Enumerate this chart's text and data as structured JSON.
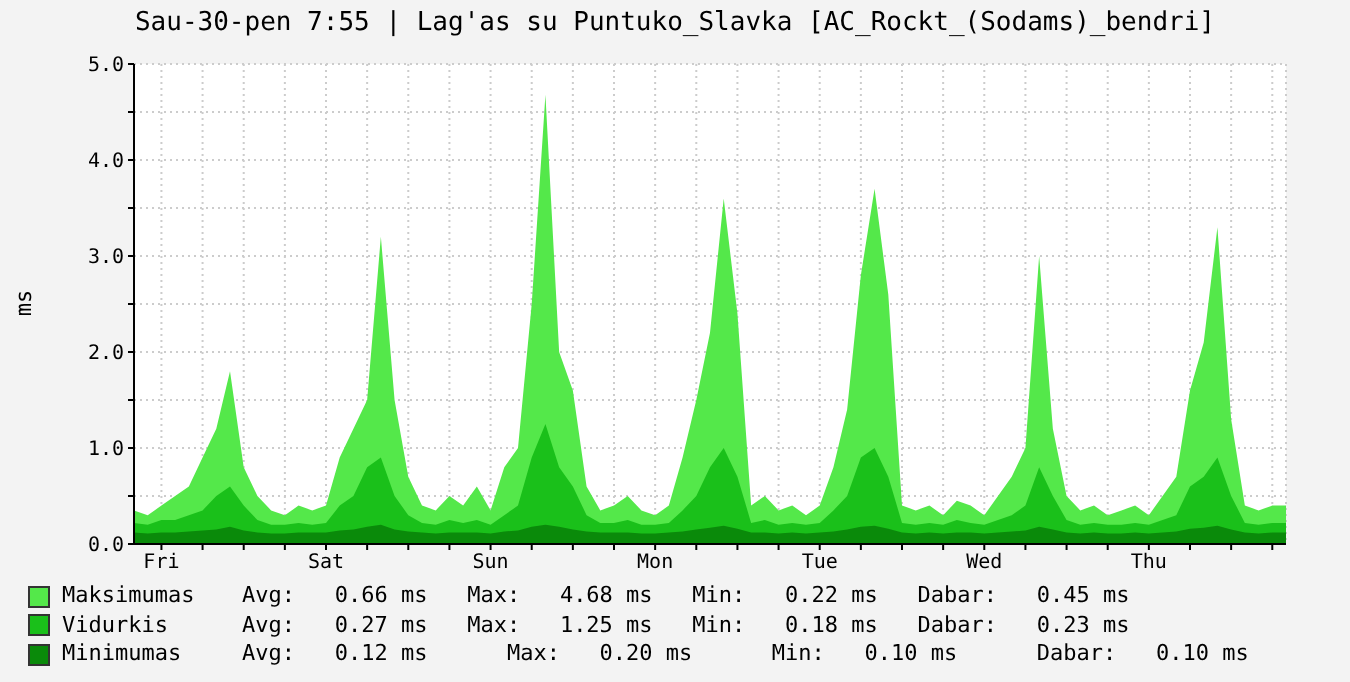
{
  "chart_data": {
    "type": "area",
    "title": "Sau-30-pen 7:55 | Lag'as su Puntuko_Slavka [AC_Rockt_(Sodams)_bendri]",
    "ylabel": "ms",
    "categories": [
      null,
      null,
      "Fri",
      null,
      null,
      null,
      null,
      null,
      null,
      null,
      null,
      null,
      null,
      null,
      "Sat",
      null,
      null,
      null,
      null,
      null,
      null,
      null,
      null,
      null,
      null,
      null,
      "Sun",
      null,
      null,
      null,
      null,
      null,
      null,
      null,
      null,
      null,
      null,
      null,
      "Mon",
      null,
      null,
      null,
      null,
      null,
      null,
      null,
      null,
      null,
      null,
      null,
      "Tue",
      null,
      null,
      null,
      null,
      null,
      null,
      null,
      null,
      null,
      null,
      null,
      "Wed",
      null,
      null,
      null,
      null,
      null,
      null,
      null,
      null,
      null,
      null,
      null,
      "Thu",
      null,
      null,
      null,
      null,
      null,
      null,
      null,
      null,
      null,
      null
    ],
    "series": [
      {
        "name": "Maksimumas",
        "color": "#54e84a",
        "values": [
          0.35,
          0.3,
          0.4,
          0.5,
          0.6,
          0.9,
          1.2,
          1.8,
          0.8,
          0.5,
          0.35,
          0.3,
          0.4,
          0.35,
          0.4,
          0.9,
          1.2,
          1.5,
          3.2,
          1.5,
          0.7,
          0.4,
          0.35,
          0.5,
          0.4,
          0.6,
          0.35,
          0.8,
          1.0,
          2.5,
          4.68,
          2.0,
          1.6,
          0.6,
          0.35,
          0.4,
          0.5,
          0.35,
          0.3,
          0.4,
          0.9,
          1.5,
          2.2,
          3.6,
          2.4,
          0.4,
          0.5,
          0.35,
          0.4,
          0.3,
          0.4,
          0.8,
          1.4,
          2.8,
          3.7,
          2.6,
          0.4,
          0.35,
          0.4,
          0.3,
          0.45,
          0.4,
          0.3,
          0.5,
          0.7,
          1.0,
          3.0,
          1.2,
          0.5,
          0.35,
          0.4,
          0.3,
          0.35,
          0.4,
          0.3,
          0.5,
          0.7,
          1.6,
          2.1,
          3.3,
          1.3,
          0.4,
          0.35,
          0.4,
          0.4
        ]
      },
      {
        "name": "Vidurkis",
        "color": "#1ac01a",
        "values": [
          0.22,
          0.2,
          0.25,
          0.25,
          0.3,
          0.35,
          0.5,
          0.6,
          0.4,
          0.25,
          0.2,
          0.2,
          0.22,
          0.2,
          0.22,
          0.4,
          0.5,
          0.8,
          0.9,
          0.5,
          0.3,
          0.22,
          0.2,
          0.25,
          0.22,
          0.25,
          0.2,
          0.3,
          0.4,
          0.9,
          1.25,
          0.8,
          0.6,
          0.3,
          0.22,
          0.22,
          0.25,
          0.2,
          0.2,
          0.22,
          0.35,
          0.5,
          0.8,
          1.0,
          0.7,
          0.22,
          0.25,
          0.2,
          0.22,
          0.2,
          0.22,
          0.35,
          0.5,
          0.9,
          1.0,
          0.7,
          0.22,
          0.2,
          0.22,
          0.2,
          0.25,
          0.22,
          0.2,
          0.25,
          0.3,
          0.4,
          0.8,
          0.5,
          0.25,
          0.2,
          0.22,
          0.2,
          0.2,
          0.22,
          0.2,
          0.25,
          0.3,
          0.6,
          0.7,
          0.9,
          0.5,
          0.22,
          0.2,
          0.22,
          0.22
        ]
      },
      {
        "name": "Minimumas",
        "color": "#0a8a0a",
        "values": [
          0.12,
          0.11,
          0.12,
          0.12,
          0.13,
          0.14,
          0.15,
          0.18,
          0.14,
          0.12,
          0.11,
          0.11,
          0.12,
          0.12,
          0.12,
          0.14,
          0.15,
          0.18,
          0.2,
          0.15,
          0.13,
          0.12,
          0.11,
          0.12,
          0.12,
          0.12,
          0.11,
          0.13,
          0.14,
          0.18,
          0.2,
          0.18,
          0.15,
          0.13,
          0.12,
          0.12,
          0.12,
          0.11,
          0.11,
          0.12,
          0.13,
          0.15,
          0.17,
          0.19,
          0.16,
          0.12,
          0.12,
          0.11,
          0.12,
          0.11,
          0.12,
          0.13,
          0.15,
          0.18,
          0.19,
          0.16,
          0.12,
          0.11,
          0.12,
          0.11,
          0.12,
          0.12,
          0.11,
          0.12,
          0.13,
          0.14,
          0.18,
          0.15,
          0.12,
          0.11,
          0.12,
          0.11,
          0.11,
          0.12,
          0.11,
          0.12,
          0.13,
          0.16,
          0.17,
          0.19,
          0.15,
          0.12,
          0.11,
          0.12,
          0.12
        ]
      }
    ],
    "annotations": [
      "Avg:   0.66 ms   Max:   4.68 ms   Min:   0.22 ms   Dabar:   0.45 ms",
      "Avg:   0.27 ms   Max:   1.25 ms   Min:   0.18 ms   Dabar:   0.23 ms",
      "Avg:   0.12 ms      Max:   0.20 ms      Min:   0.10 ms      Dabar:   0.10 ms"
    ],
    "ylim": [
      0,
      5
    ],
    "yticks": [
      {
        "value": 0,
        "label": "0.0"
      },
      {
        "value": 0.5,
        "label": null
      },
      {
        "value": 1,
        "label": "1.0"
      },
      {
        "value": 1.5,
        "label": null
      },
      {
        "value": 2,
        "label": "2.0"
      },
      {
        "value": 2.5,
        "label": null
      },
      {
        "value": 3,
        "label": "3.0"
      },
      {
        "value": 3.5,
        "label": null
      },
      {
        "value": 4,
        "label": "4.0"
      },
      {
        "value": 4.5,
        "label": null
      },
      {
        "value": 5,
        "label": "5.0"
      }
    ],
    "grid": true,
    "legend": "bottom"
  }
}
